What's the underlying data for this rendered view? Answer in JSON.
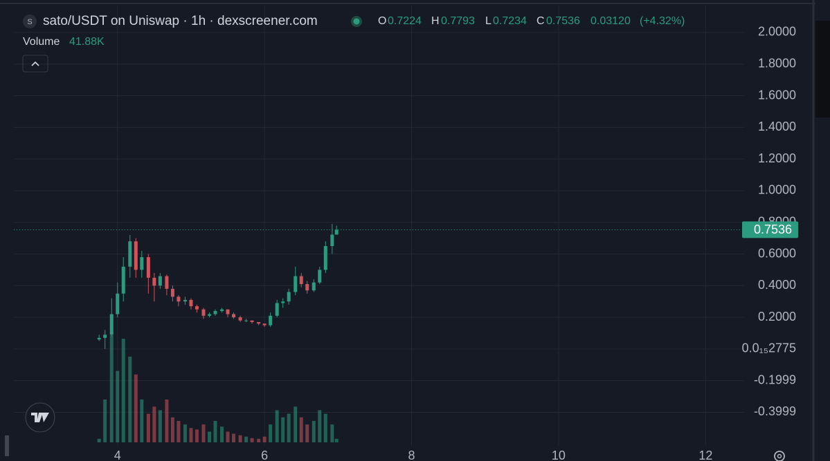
{
  "chart_data": {
    "type": "candlestick",
    "title": "sato/USDT on Uniswap · 1h · dexscreener.com",
    "ohlc_labels": {
      "open": "O",
      "high": "H",
      "low": "L",
      "close": "C"
    },
    "change": "0.03120",
    "change_percent": "(+4.32%)",
    "volume_title": "Volume",
    "volume_label": "41.88K",
    "up_color": "#2b9c7f",
    "down_color": "#d0545c",
    "x": [
      3.75,
      3.83,
      3.92,
      4.0,
      4.08,
      4.17,
      4.25,
      4.33,
      4.42,
      4.5,
      4.58,
      4.67,
      4.75,
      4.83,
      4.92,
      5.0,
      5.08,
      5.17,
      5.25,
      5.33,
      5.42,
      5.5,
      5.58,
      5.67,
      5.75,
      5.83,
      5.92,
      6.0,
      6.08,
      6.17,
      6.25,
      6.33,
      6.42,
      6.5,
      6.58,
      6.67,
      6.75,
      6.83,
      6.92,
      6.98
    ],
    "open": [
      0.06,
      0.07,
      0.09,
      0.22,
      0.35,
      0.52,
      0.68,
      0.5,
      0.58,
      0.45,
      0.4,
      0.46,
      0.38,
      0.33,
      0.3,
      0.31,
      0.27,
      0.25,
      0.21,
      0.22,
      0.24,
      0.25,
      0.22,
      0.2,
      0.18,
      0.18,
      0.17,
      0.16,
      0.15,
      0.21,
      0.29,
      0.3,
      0.36,
      0.46,
      0.41,
      0.37,
      0.42,
      0.5,
      0.65,
      0.7224
    ],
    "high": [
      0.09,
      0.12,
      0.32,
      0.42,
      0.58,
      0.72,
      0.7,
      0.62,
      0.6,
      0.48,
      0.48,
      0.47,
      0.4,
      0.34,
      0.33,
      0.32,
      0.28,
      0.26,
      0.23,
      0.25,
      0.26,
      0.25,
      0.23,
      0.21,
      0.19,
      0.18,
      0.17,
      0.16,
      0.23,
      0.31,
      0.32,
      0.38,
      0.52,
      0.48,
      0.43,
      0.44,
      0.52,
      0.68,
      0.79,
      0.7793
    ],
    "low": [
      0.05,
      0.0,
      0.08,
      0.2,
      0.3,
      0.45,
      0.45,
      0.45,
      0.35,
      0.3,
      0.38,
      0.34,
      0.3,
      0.27,
      0.28,
      0.25,
      0.23,
      0.19,
      0.2,
      0.21,
      0.23,
      0.2,
      0.19,
      0.17,
      0.17,
      0.16,
      0.15,
      0.14,
      0.14,
      0.2,
      0.26,
      0.28,
      0.34,
      0.39,
      0.35,
      0.36,
      0.41,
      0.48,
      0.6,
      0.7234
    ],
    "close": [
      0.07,
      0.09,
      0.22,
      0.35,
      0.52,
      0.68,
      0.5,
      0.58,
      0.45,
      0.4,
      0.46,
      0.38,
      0.33,
      0.3,
      0.31,
      0.27,
      0.25,
      0.21,
      0.22,
      0.24,
      0.25,
      0.22,
      0.2,
      0.18,
      0.18,
      0.17,
      0.16,
      0.15,
      0.21,
      0.29,
      0.3,
      0.36,
      0.46,
      0.41,
      0.37,
      0.42,
      0.5,
      0.65,
      0.7224,
      0.7536
    ],
    "volume": [
      42000,
      504000,
      1260000,
      840000,
      1218000,
      1008000,
      798000,
      504000,
      336000,
      420000,
      378000,
      504000,
      294000,
      252000,
      210000,
      168000,
      151000,
      210000,
      126000,
      252000,
      185000,
      126000,
      101000,
      84000,
      67000,
      50000,
      42000,
      67000,
      210000,
      378000,
      294000,
      336000,
      420000,
      294000,
      210000,
      252000,
      378000,
      336000,
      210000,
      41880
    ],
    "xlim": [
      2.59,
      12.43
    ],
    "xticks": [
      4,
      6,
      8,
      10,
      12
    ],
    "ylim": [
      -0.59,
      2.17
    ],
    "yticks": [
      {
        "value": 2.0,
        "label": "2.0000"
      },
      {
        "value": 1.8,
        "label": "1.8000"
      },
      {
        "value": 1.6,
        "label": "1.6000"
      },
      {
        "value": 1.4,
        "label": "1.4000"
      },
      {
        "value": 1.2,
        "label": "1.2000"
      },
      {
        "value": 1.0,
        "label": "1.0000"
      },
      {
        "value": 0.8,
        "label": "0.8000"
      },
      {
        "value": 0.6,
        "label": "0.6000"
      },
      {
        "value": 0.4,
        "label": "0.4000"
      },
      {
        "value": 0.2,
        "label": "0.2000"
      },
      {
        "value": 0.0,
        "label": "0.0₁₅2775"
      },
      {
        "value": -0.1999,
        "label": "-0.1999"
      },
      {
        "value": -0.3999,
        "label": "-0.3999"
      }
    ],
    "grid": true
  }
}
